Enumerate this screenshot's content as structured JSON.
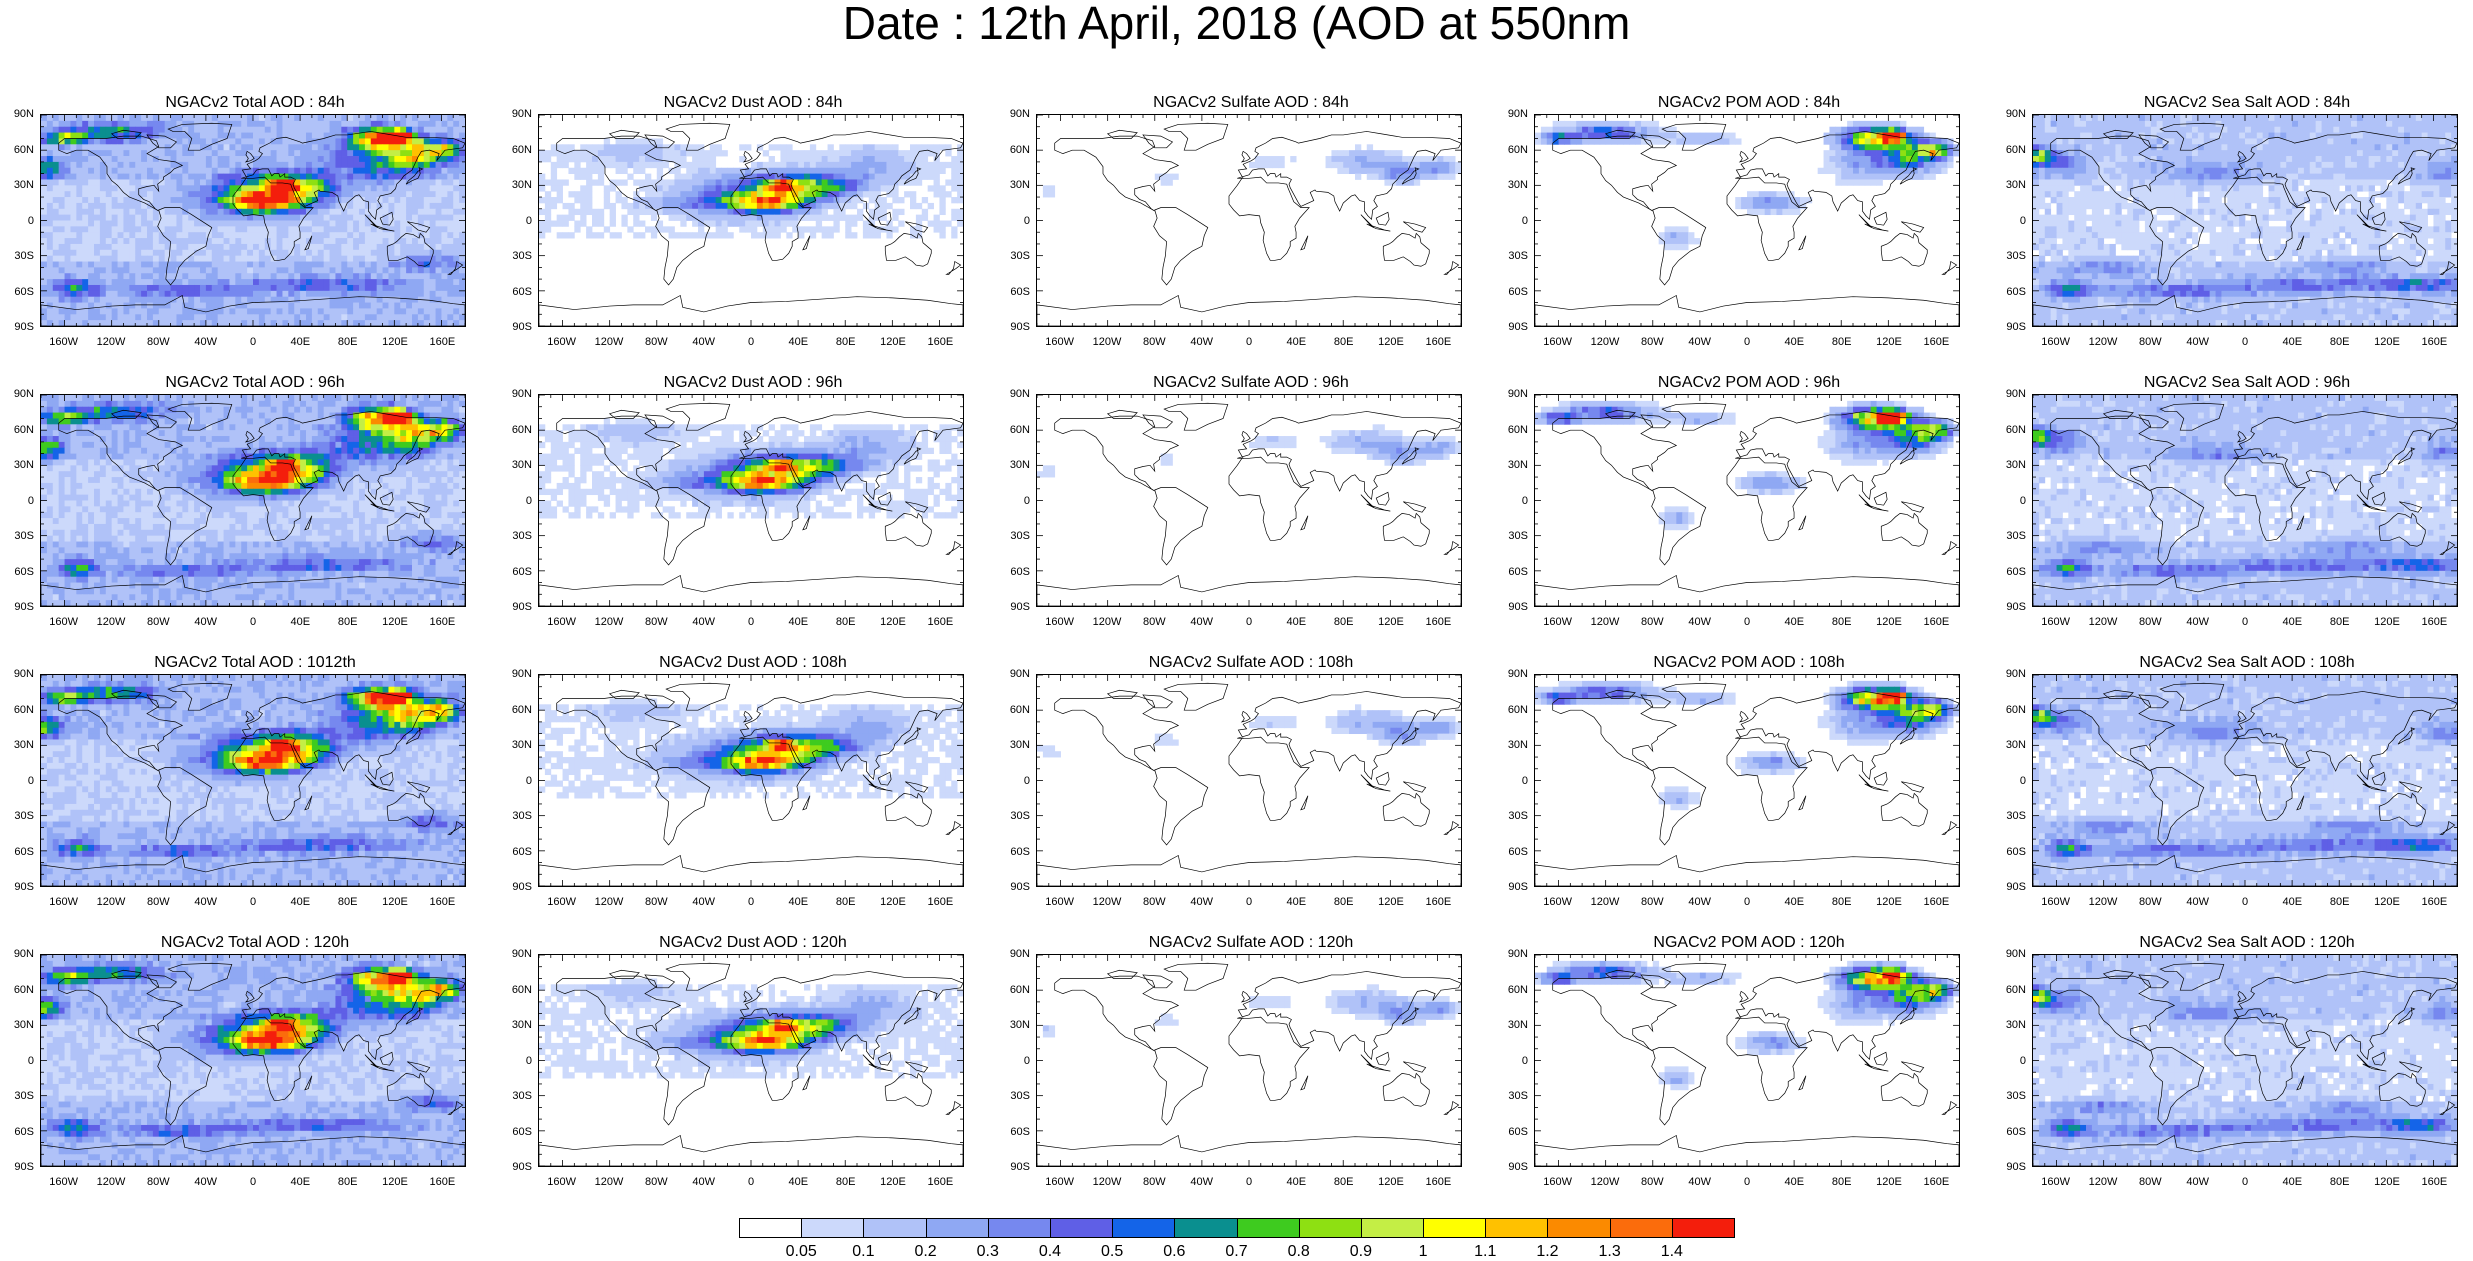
{
  "title": "Date : 12th April, 2018 (AOD at 550nm",
  "panels": [
    {
      "title": "NGACv2 Total AOD : 84h",
      "variable": "total"
    },
    {
      "title": "NGACv2 Dust AOD : 84h",
      "variable": "dust"
    },
    {
      "title": "NGACv2 Sulfate AOD : 84h",
      "variable": "sulfate"
    },
    {
      "title": "NGACv2 POM AOD : 84h",
      "variable": "pom"
    },
    {
      "title": "NGACv2 Sea Salt AOD : 84h",
      "variable": "seasalt"
    },
    {
      "title": "NGACv2 Total AOD : 96h",
      "variable": "total"
    },
    {
      "title": "NGACv2 Dust AOD : 96h",
      "variable": "dust"
    },
    {
      "title": "NGACv2 Sulfate AOD : 96h",
      "variable": "sulfate"
    },
    {
      "title": "NGACv2 POM AOD : 96h",
      "variable": "pom"
    },
    {
      "title": "NGACv2 Sea Salt AOD : 96h",
      "variable": "seasalt"
    },
    {
      "title": "NGACv2 Total AOD : 1012th",
      "variable": "total"
    },
    {
      "title": "NGACv2 Dust AOD : 108h",
      "variable": "dust"
    },
    {
      "title": "NGACv2 Sulfate AOD : 108h",
      "variable": "sulfate"
    },
    {
      "title": "NGACv2 POM AOD : 108h",
      "variable": "pom"
    },
    {
      "title": "NGACv2 Sea Salt AOD : 108h",
      "variable": "seasalt"
    },
    {
      "title": "NGACv2 Total AOD : 120h",
      "variable": "total"
    },
    {
      "title": "NGACv2 Dust AOD : 120h",
      "variable": "dust"
    },
    {
      "title": "NGACv2 Sulfate AOD : 120h",
      "variable": "sulfate"
    },
    {
      "title": "NGACv2 POM AOD : 120h",
      "variable": "pom"
    },
    {
      "title": "NGACv2 Sea Salt  AOD : 120h",
      "variable": "seasalt"
    }
  ],
  "lat_labels": [
    "90N",
    "60N",
    "30N",
    "0",
    "30S",
    "60S",
    "90S"
  ],
  "lon_labels": [
    "160W",
    "120W",
    "80W",
    "40W",
    "0",
    "40E",
    "80E",
    "120E",
    "160E"
  ],
  "colorbar": {
    "labels": [
      "0.05",
      "0.1",
      "0.2",
      "0.3",
      "0.4",
      "0.5",
      "0.6",
      "0.7",
      "0.8",
      "0.9",
      "1",
      "1.1",
      "1.2",
      "1.3",
      "1.4"
    ],
    "colors": [
      "#ffffff",
      "#ccd9fb",
      "#b0c2f8",
      "#8fa8f3",
      "#7688ef",
      "#5f5fe6",
      "#1464e8",
      "#0a8f8f",
      "#3ecb1f",
      "#8ee012",
      "#c4ee45",
      "#ffff00",
      "#ffc100",
      "#fb8a00",
      "#fb6c0c",
      "#f41e0c"
    ]
  }
}
